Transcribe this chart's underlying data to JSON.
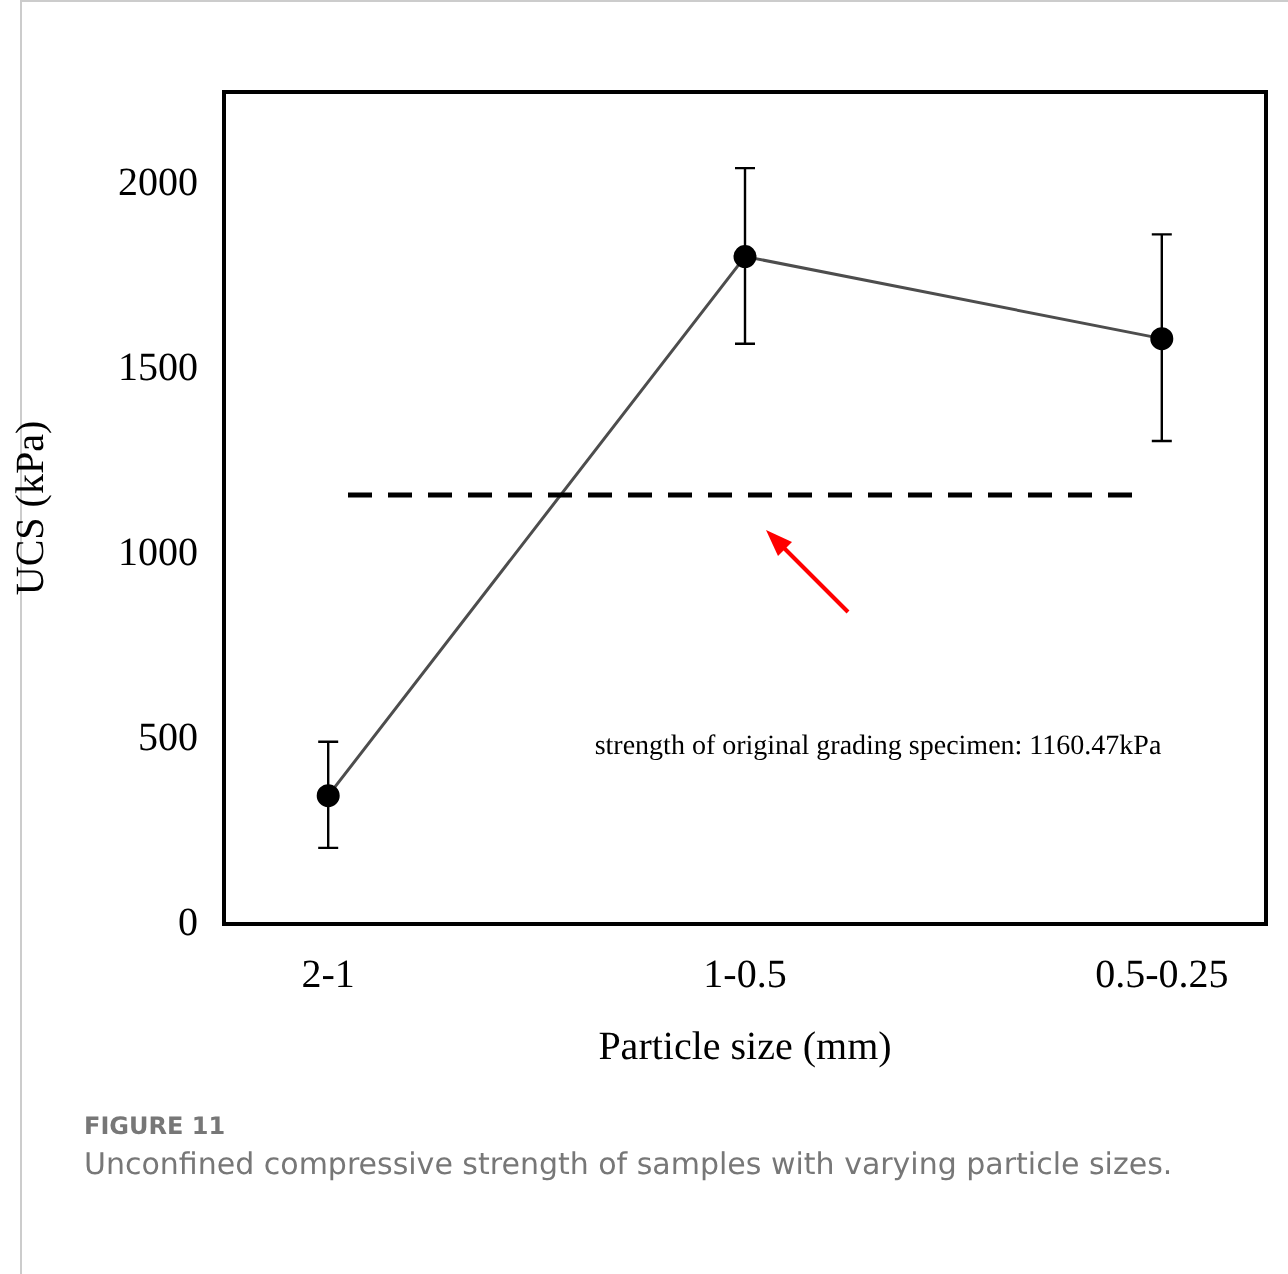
{
  "chart_data": {
    "type": "line",
    "xlabel": "Particle size (mm)",
    "ylabel": "UCS (kPa)",
    "categories": [
      "2-1",
      "1-0.5",
      "0.5-0.25"
    ],
    "series": [
      {
        "color": "#4d4d4d",
        "values": [
          347,
          1805,
          1583
        ],
        "errors": [
          [
            206,
            493
          ],
          [
            1569,
            2044
          ],
          [
            1306,
            1865
          ]
        ]
      }
    ],
    "ylim": [
      0,
      2250
    ],
    "yticks": [
      0,
      500,
      1000,
      1500,
      2000
    ],
    "grid": false,
    "legend": false,
    "marker": "circle",
    "line_style": "solid",
    "ref_lines": [
      {
        "axis": "y",
        "value": 1160.47,
        "label": "strength of original grading specimen: 1160.47kPa",
        "color": "#000000",
        "line_style": "dashed"
      }
    ],
    "annotations": [
      "FIGURE 11",
      "Unconfined compressive strength of samples with varying particle sizes."
    ]
  }
}
